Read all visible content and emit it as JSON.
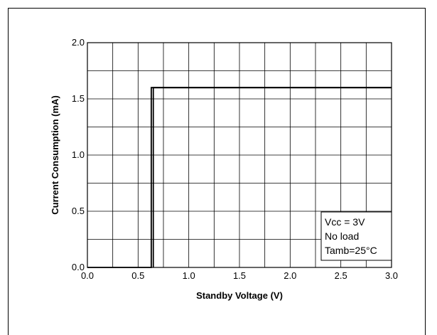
{
  "chart_data": {
    "type": "line",
    "title": "",
    "xlabel": "Standby Voltage (V)",
    "ylabel": "Current Consumption (mA)",
    "xlim": [
      0.0,
      3.0
    ],
    "ylim": [
      0.0,
      2.0
    ],
    "grid": true,
    "x_ticks": [
      "0.0",
      "0.5",
      "1.0",
      "1.5",
      "2.0",
      "2.5",
      "3.0"
    ],
    "y_ticks": [
      "0.0",
      "0.5",
      "1.0",
      "1.5",
      "2.0"
    ],
    "x_tick_values": [
      0.0,
      0.5,
      1.0,
      1.5,
      2.0,
      2.5,
      3.0
    ],
    "y_tick_values": [
      0.0,
      0.5,
      1.0,
      1.5,
      2.0
    ],
    "x_minor_step": 0.25,
    "y_minor_step": 0.25,
    "series": [
      {
        "x": [
          0.0,
          0.63,
          0.63,
          3.0
        ],
        "y": [
          0.0,
          0.0,
          1.6,
          1.6
        ]
      },
      {
        "x": [
          0.65,
          0.65,
          3.0
        ],
        "y": [
          0.0,
          1.6,
          1.6
        ]
      }
    ],
    "annotation": [
      "Vcc = 3V",
      "No load",
      "Tamb=25°C"
    ]
  }
}
